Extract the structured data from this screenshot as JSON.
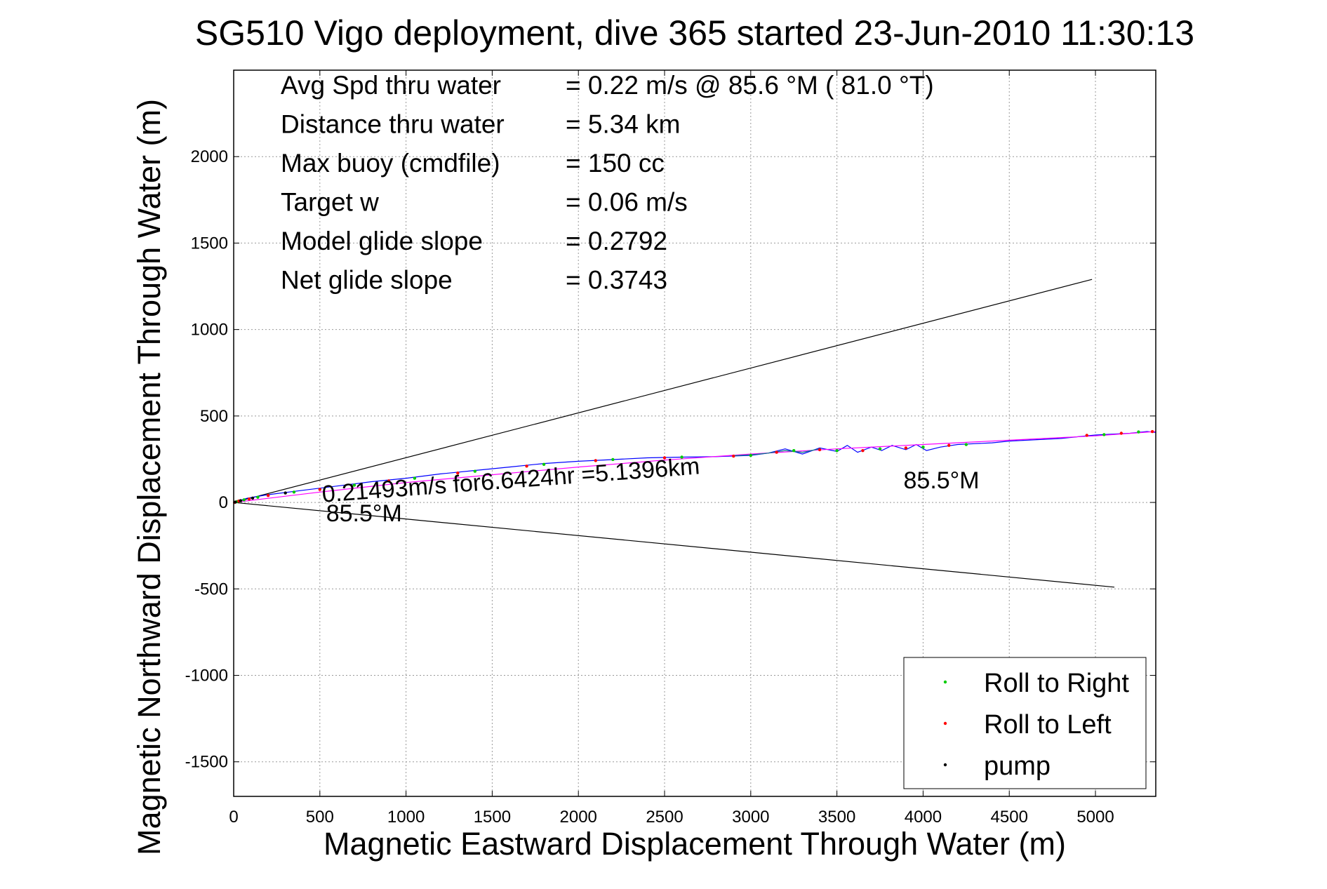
{
  "chart_data": {
    "type": "line",
    "title": "SG510 Vigo deployment, dive 365 started 23-Jun-2010 11:30:13",
    "xlabel": "Magnetic Eastward Displacement Through Water (m)",
    "ylabel": "Magnetic Northward Displacement Through Water (m)",
    "xlim": [
      0,
      5350
    ],
    "ylim": [
      -1700,
      2500
    ],
    "xticks": [
      0,
      500,
      1000,
      1500,
      2000,
      2500,
      3000,
      3500,
      4000,
      4500,
      5000
    ],
    "yticks": [
      -1500,
      -1000,
      -500,
      0,
      500,
      1000,
      1500,
      2000
    ],
    "grid": true,
    "legend_position": "bottom-right",
    "stats": [
      {
        "label": "Avg Spd thru water",
        "value": "=  0.22 m/s @  85.6 °M ( 81.0 °T)"
      },
      {
        "label": "Distance thru water",
        "value": "=  5.34 km"
      },
      {
        "label": "Max buoy (cmdfile)",
        "value": "= 150 cc"
      },
      {
        "label": "Target w",
        "value": "= 0.06 m/s"
      },
      {
        "label": "Model glide slope",
        "value": "= 0.2792"
      },
      {
        "label": "Net glide slope",
        "value": "= 0.3743"
      }
    ],
    "annotations": [
      {
        "text": "0.21493m/s for6.6424hr =5.1396km",
        "x": 500,
        "y": 50
      },
      {
        "text": "85.5°M",
        "x": 520,
        "y": -60
      },
      {
        "text": "85.5°M",
        "x": 3870,
        "y": 130
      }
    ],
    "cone_lines": [
      {
        "x": [
          0,
          4980
        ],
        "y": [
          0,
          1290
        ],
        "color": "#000000"
      },
      {
        "x": [
          0,
          5110
        ],
        "y": [
          0,
          -490
        ],
        "color": "#000000"
      }
    ],
    "series": [
      {
        "name": "",
        "color": "#0000ff",
        "x": [
          0,
          80,
          200,
          400,
          600,
          800,
          1000,
          1200,
          1400,
          1600,
          1800,
          2000,
          2200,
          2400,
          2600,
          2800,
          3000,
          3100,
          3200,
          3300,
          3400,
          3500,
          3560,
          3620,
          3700,
          3760,
          3820,
          3900,
          3960,
          4020,
          4100,
          4200,
          4300,
          4400,
          4500,
          4600,
          4700,
          4800,
          4900,
          5000,
          5100,
          5200,
          5300,
          5350
        ],
        "y": [
          0,
          25,
          45,
          70,
          95,
          120,
          140,
          165,
          185,
          205,
          225,
          238,
          248,
          258,
          262,
          265,
          272,
          285,
          310,
          280,
          315,
          295,
          330,
          290,
          320,
          300,
          330,
          305,
          335,
          300,
          320,
          335,
          340,
          345,
          355,
          360,
          365,
          370,
          380,
          390,
          395,
          400,
          410,
          405
        ]
      },
      {
        "name": "",
        "color": "#ff00ff",
        "x": [
          0,
          500,
          1000,
          1500,
          2000,
          2500,
          3000,
          3500,
          4000,
          4500,
          5000,
          5350
        ],
        "y": [
          0,
          60,
          115,
          160,
          205,
          245,
          280,
          310,
          335,
          360,
          385,
          410
        ]
      },
      {
        "name": "",
        "color": "#008080",
        "x": [
          2900,
          3000,
          3100,
          3200,
          3300,
          3400
        ],
        "y": [
          270,
          275,
          285,
          300,
          290,
          310
        ]
      }
    ],
    "markers": [
      {
        "name": "Roll to Right",
        "color": "#00cc00",
        "x": [
          20,
          60,
          140,
          350,
          700,
          1050,
          1400,
          1800,
          2200,
          2600,
          3000,
          3250,
          3500,
          3750,
          4000,
          4250,
          5050,
          5250
        ],
        "y": [
          5,
          15,
          30,
          60,
          100,
          140,
          180,
          220,
          248,
          262,
          272,
          300,
          300,
          310,
          320,
          335,
          392,
          408
        ]
      },
      {
        "name": "Roll to Left",
        "color": "#ff0000",
        "x": [
          5,
          30,
          90,
          200,
          500,
          900,
          1300,
          1700,
          2100,
          2500,
          2900,
          3150,
          3400,
          3650,
          3900,
          4150,
          4950,
          5150,
          5330
        ],
        "y": [
          0,
          8,
          20,
          40,
          75,
          125,
          170,
          210,
          242,
          258,
          268,
          290,
          305,
          300,
          315,
          330,
          388,
          400,
          410
        ]
      },
      {
        "name": "pump",
        "color": "#000000",
        "x": [
          10,
          40,
          110,
          300
        ],
        "y": [
          2,
          10,
          25,
          55
        ]
      }
    ]
  }
}
